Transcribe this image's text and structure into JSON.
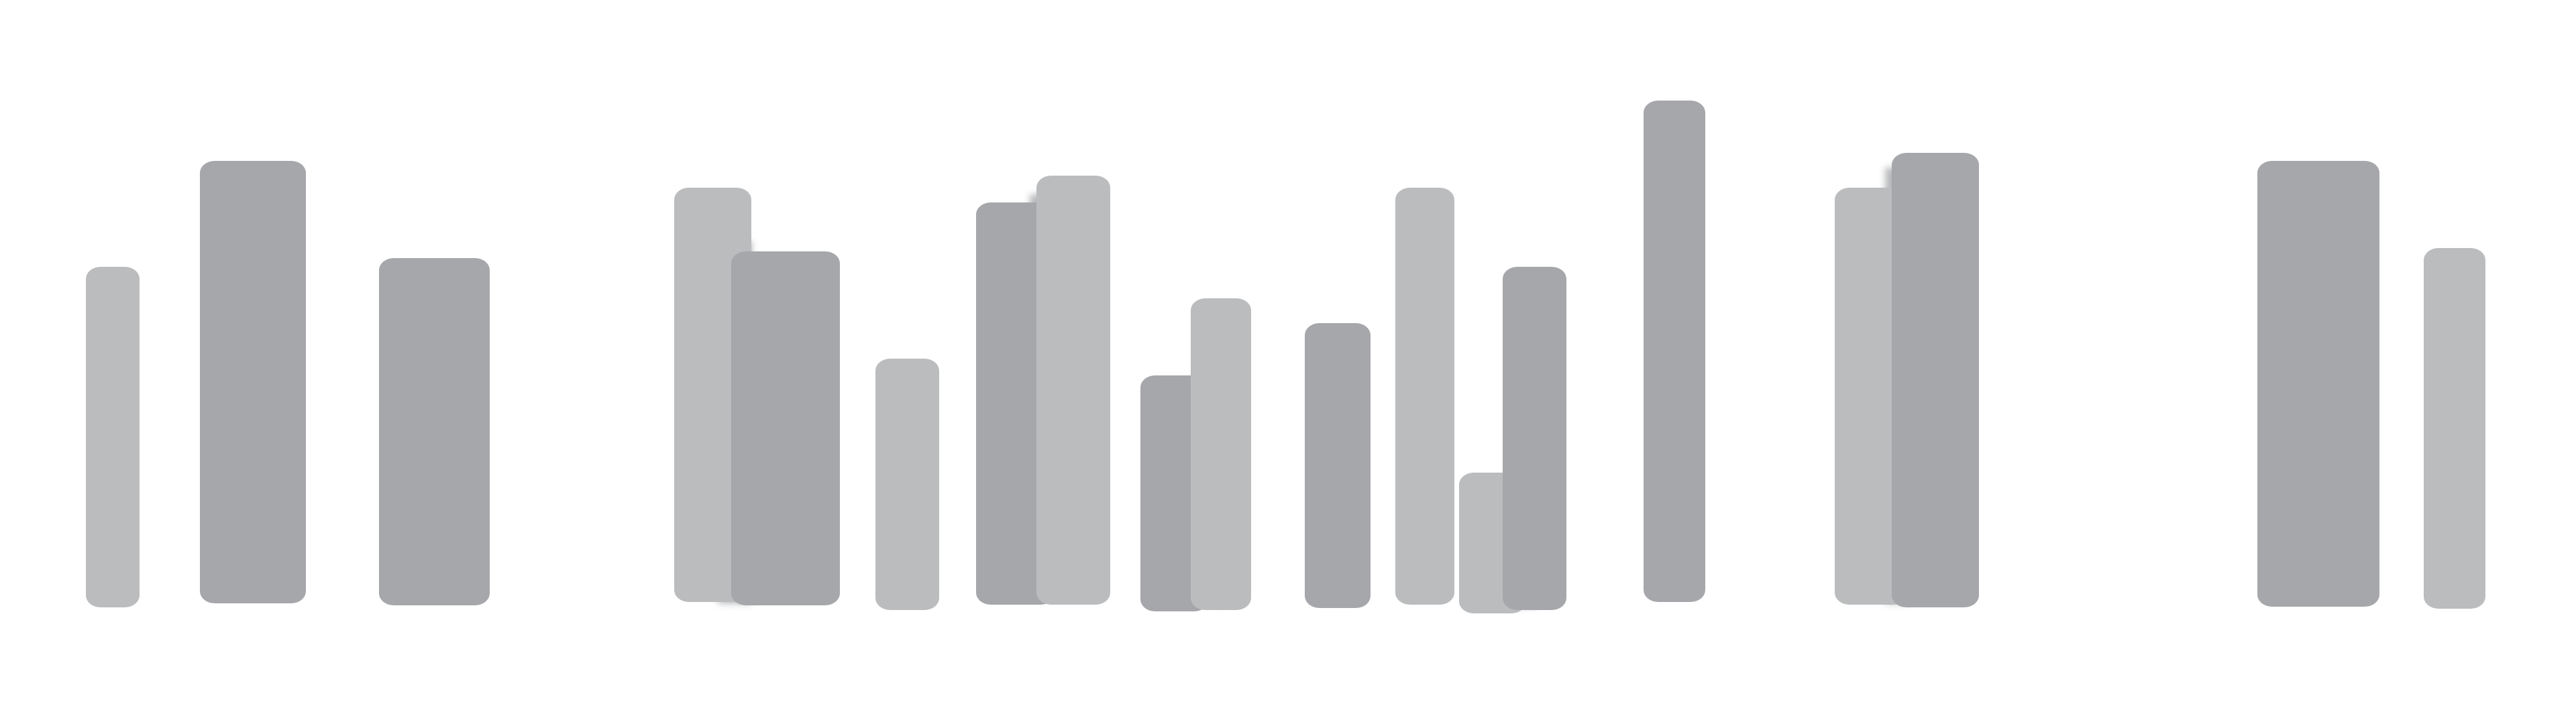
{
  "colors": {
    "background": "#ffffff",
    "light_gray": "#bbbcbe",
    "dark_gray": "#a6a7aa"
  },
  "bars": [
    {
      "shade": "light"
    },
    {
      "shade": "dark"
    },
    {
      "shade": "dark"
    },
    {
      "shade": "light"
    },
    {
      "shade": "dark"
    },
    {
      "shade": "light"
    },
    {
      "shade": "dark"
    },
    {
      "shade": "light"
    },
    {
      "shade": "dark"
    },
    {
      "shade": "light"
    },
    {
      "shade": "dark"
    },
    {
      "shade": "light"
    },
    {
      "shade": "light"
    },
    {
      "shade": "dark"
    },
    {
      "shade": "dark"
    },
    {
      "shade": "light"
    },
    {
      "shade": "dark"
    },
    {
      "shade": "dark"
    },
    {
      "shade": "light"
    }
  ]
}
